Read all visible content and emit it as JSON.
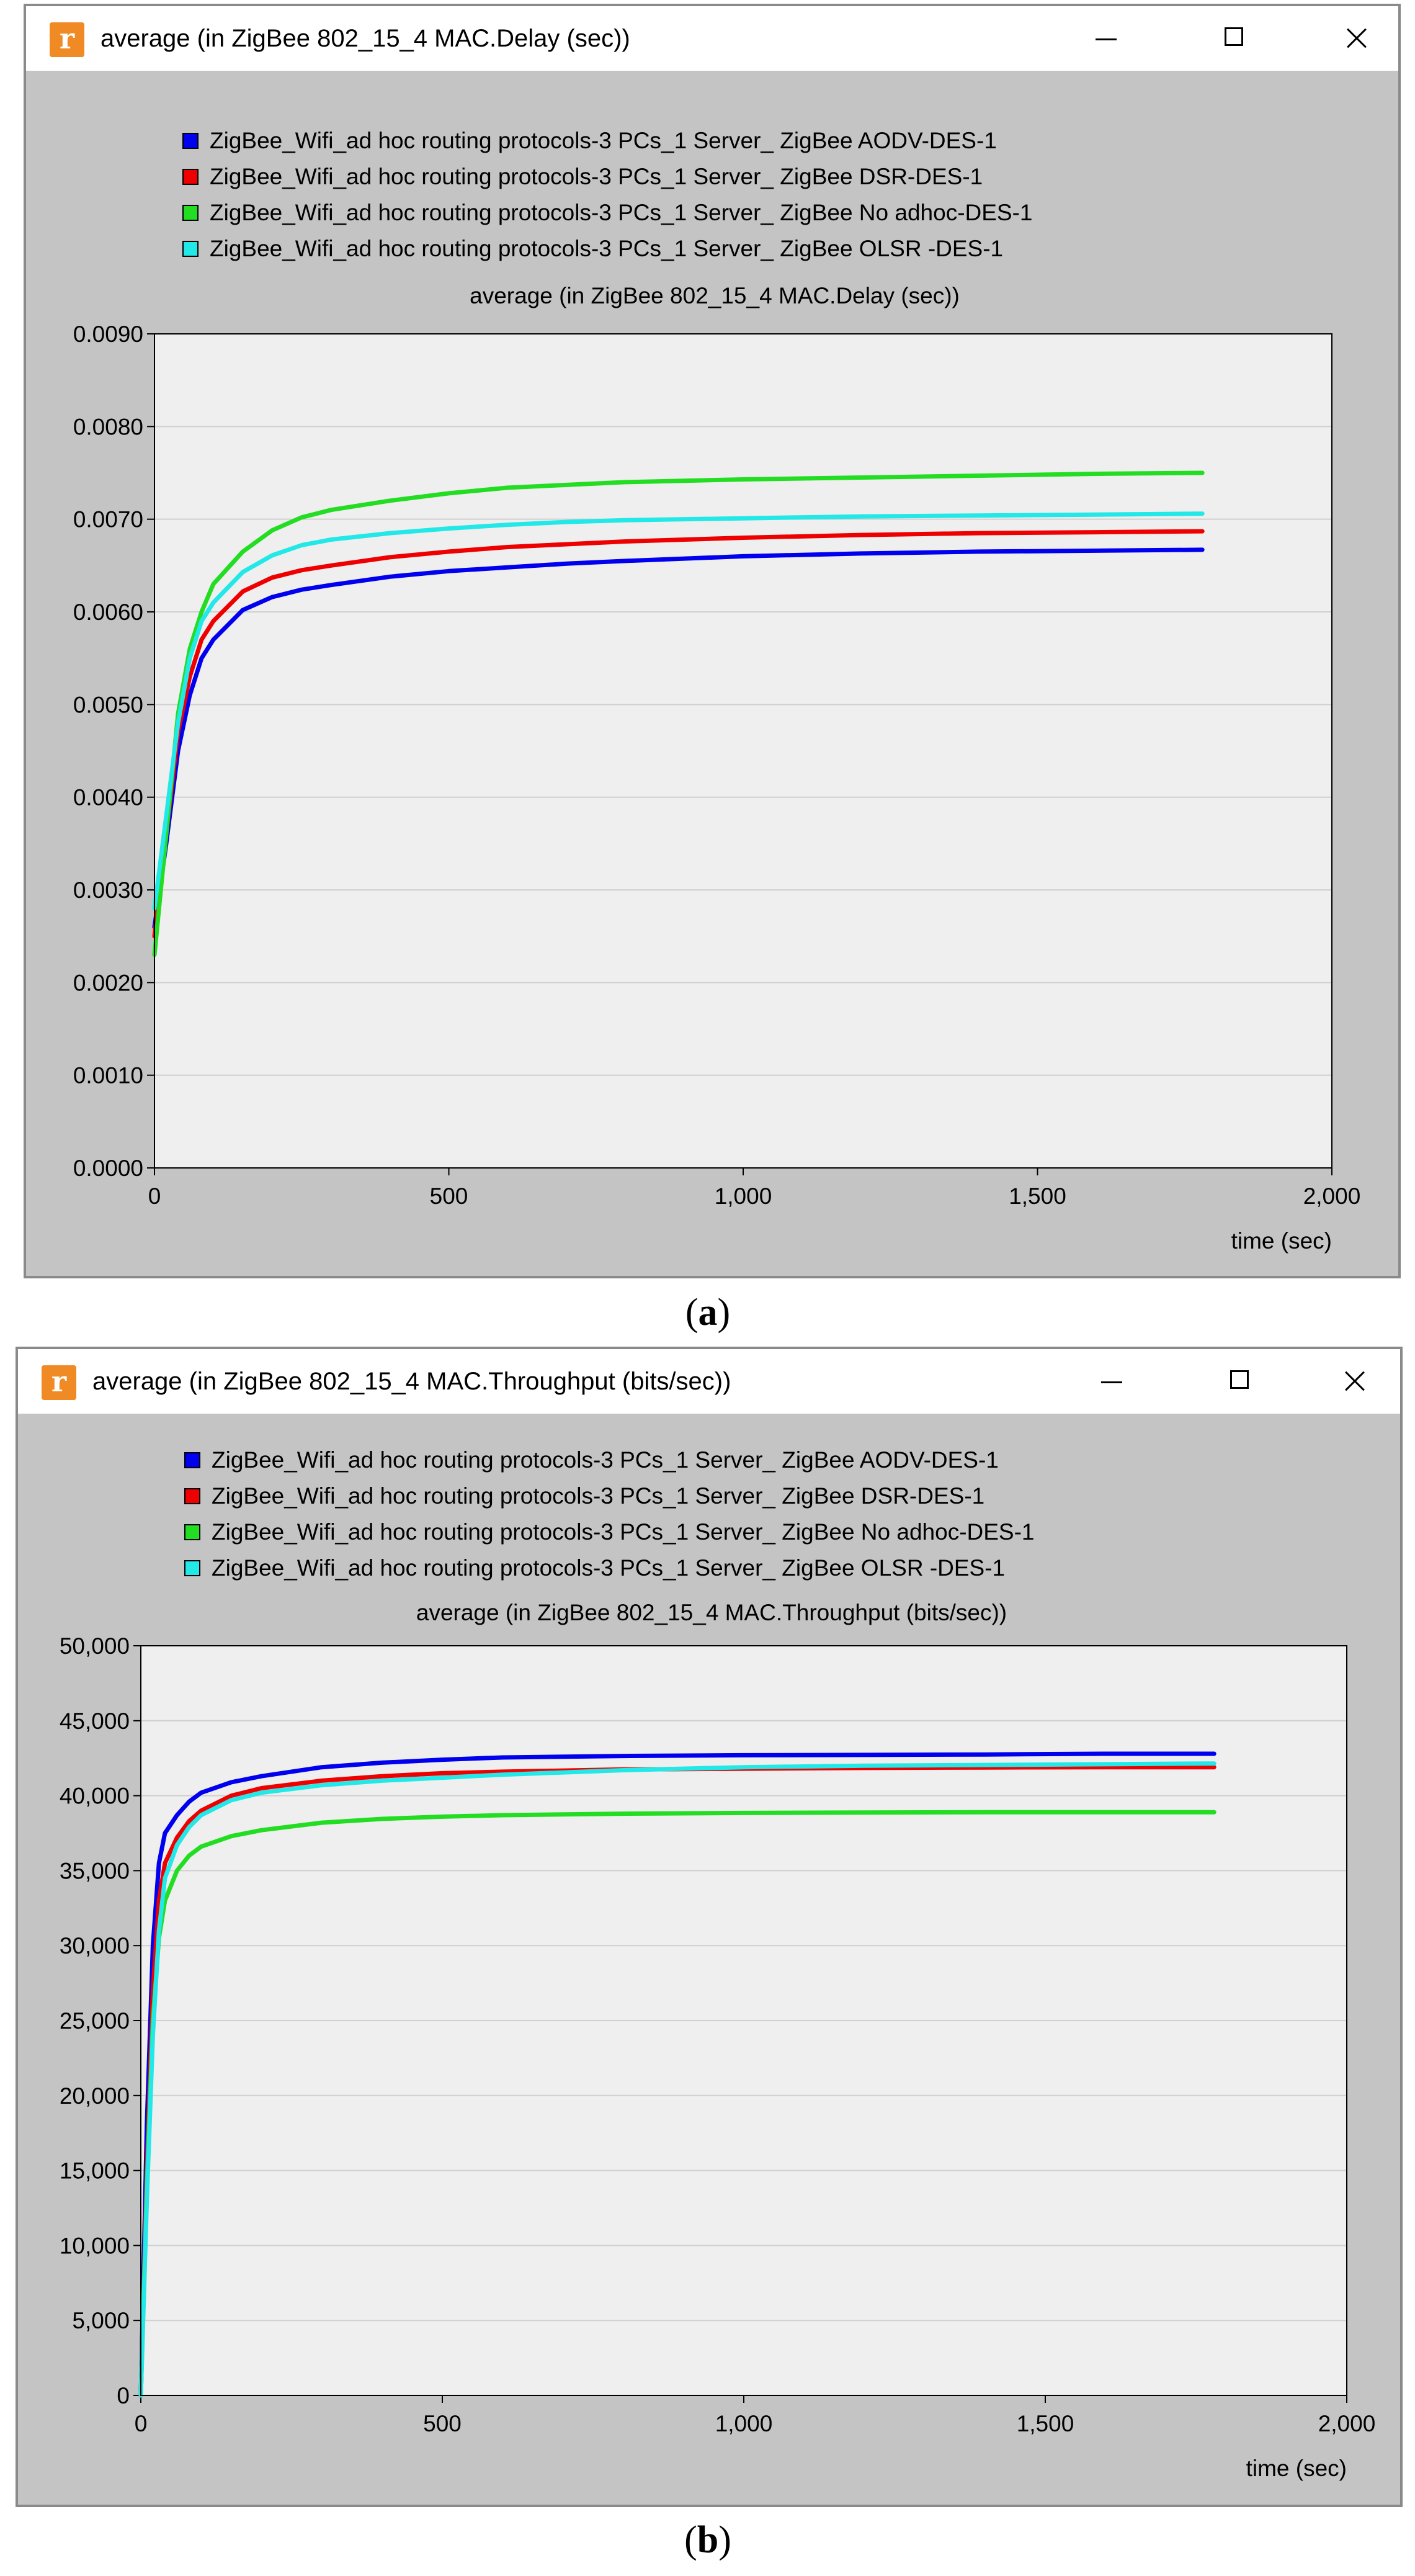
{
  "panels": [
    {
      "window_title": "average (in ZigBee 802_15_4 MAC.Delay (sec))",
      "caption_letter": "a",
      "chart_data": {
        "type": "line",
        "title": "average (in ZigBee 802_15_4 MAC.Delay (sec))",
        "xlabel": "time (sec)",
        "ylabel": "",
        "xlim": [
          0,
          2000
        ],
        "ylim": [
          0,
          0.009
        ],
        "x_ticks": [
          0,
          500,
          1000,
          1500,
          2000
        ],
        "x_tick_labels": [
          "0",
          "500",
          "1,000",
          "1,500",
          "2,000"
        ],
        "y_ticks": [
          0,
          0.001,
          0.002,
          0.003,
          0.004,
          0.005,
          0.006,
          0.007,
          0.008,
          0.009
        ],
        "y_tick_labels": [
          "0.0000",
          "0.0010",
          "0.0020",
          "0.0030",
          "0.0040",
          "0.0050",
          "0.0060",
          "0.0070",
          "0.0080",
          "0.0090"
        ],
        "grid": "horizontal",
        "legend_position": "top",
        "x": [
          0,
          20,
          40,
          60,
          80,
          100,
          150,
          200,
          250,
          300,
          400,
          500,
          600,
          700,
          800,
          1000,
          1200,
          1400,
          1600,
          1780
        ],
        "series": [
          {
            "name": "ZigBee_Wifi_ad hoc routing protocols-3 PCs_1 Server_ ZigBee  AODV-DES-1",
            "color": "#0000ee",
            "values": [
              0.0026,
              0.0035,
              0.0045,
              0.0051,
              0.0055,
              0.0057,
              0.00602,
              0.00616,
              0.00624,
              0.00629,
              0.00638,
              0.00644,
              0.00648,
              0.00652,
              0.00655,
              0.0066,
              0.00663,
              0.00665,
              0.00666,
              0.00667
            ]
          },
          {
            "name": "ZigBee_Wifi_ad hoc routing protocols-3 PCs_1 Server_ ZigBee DSR-DES-1",
            "color": "#ee0000",
            "values": [
              0.0025,
              0.0036,
              0.0047,
              0.0053,
              0.0057,
              0.0059,
              0.00622,
              0.00637,
              0.00645,
              0.0065,
              0.00659,
              0.00665,
              0.0067,
              0.00673,
              0.00676,
              0.0068,
              0.00683,
              0.00685,
              0.00686,
              0.00687
            ]
          },
          {
            "name": "ZigBee_Wifi_ad hoc routing protocols-3 PCs_1 Server_ ZigBee No adhoc-DES-1",
            "color": "#22dd22",
            "values": [
              0.0023,
              0.0036,
              0.0049,
              0.0056,
              0.006,
              0.0063,
              0.00665,
              0.00688,
              0.00702,
              0.0071,
              0.0072,
              0.00728,
              0.00734,
              0.00737,
              0.0074,
              0.00743,
              0.00745,
              0.00747,
              0.00749,
              0.0075
            ]
          },
          {
            "name": "ZigBee_Wifi_ad hoc routing protocols-3 PCs_1 Server_ ZigBee OLSR -DES-1",
            "color": "#22e8e8",
            "values": [
              0.0028,
              0.0038,
              0.0048,
              0.0055,
              0.0059,
              0.0061,
              0.00643,
              0.00661,
              0.00672,
              0.00678,
              0.00685,
              0.0069,
              0.00694,
              0.00697,
              0.00699,
              0.00701,
              0.00703,
              0.00704,
              0.00705,
              0.00706
            ]
          }
        ]
      }
    },
    {
      "window_title": "average (in ZigBee 802_15_4 MAC.Throughput (bits/sec))",
      "caption_letter": "b",
      "chart_data": {
        "type": "line",
        "title": "average (in ZigBee 802_15_4 MAC.Throughput (bits/sec))",
        "xlabel": "time (sec)",
        "ylabel": "",
        "xlim": [
          0,
          2000
        ],
        "ylim": [
          0,
          50000
        ],
        "x_ticks": [
          0,
          500,
          1000,
          1500,
          2000
        ],
        "x_tick_labels": [
          "0",
          "500",
          "1,000",
          "1,500",
          "2,000"
        ],
        "y_ticks": [
          0,
          5000,
          10000,
          15000,
          20000,
          25000,
          30000,
          35000,
          40000,
          45000,
          50000
        ],
        "y_tick_labels": [
          "0",
          "5,000",
          "10,000",
          "15,000",
          "20,000",
          "25,000",
          "30,000",
          "35,000",
          "40,000",
          "45,000",
          "50,000"
        ],
        "grid": "horizontal",
        "legend_position": "top",
        "x": [
          0,
          10,
          20,
          30,
          40,
          60,
          80,
          100,
          150,
          200,
          300,
          400,
          500,
          600,
          800,
          1000,
          1200,
          1400,
          1600,
          1780
        ],
        "series": [
          {
            "name": "ZigBee_Wifi_ad hoc routing protocols-3 PCs_1 Server_ ZigBee  AODV-DES-1",
            "color": "#0000ee",
            "values": [
              0,
              18000,
              30000,
              35500,
              37500,
              38700,
              39600,
              40200,
              40900,
              41300,
              41900,
              42200,
              42400,
              42550,
              42650,
              42700,
              42720,
              42750,
              42800,
              42800
            ]
          },
          {
            "name": "ZigBee_Wifi_ad hoc routing protocols-3 PCs_1 Server_ ZigBee DSR-DES-1",
            "color": "#ee0000",
            "values": [
              0,
              15000,
              27000,
              33000,
              35500,
              37200,
              38300,
              39000,
              40000,
              40500,
              41000,
              41300,
              41500,
              41600,
              41750,
              41800,
              41850,
              41880,
              41900,
              41900
            ]
          },
          {
            "name": "ZigBee_Wifi_ad hoc routing protocols-3 PCs_1 Server_ ZigBee No adhoc-DES-1",
            "color": "#22dd22",
            "values": [
              0,
              14000,
              25000,
              30500,
              33000,
              35000,
              36000,
              36600,
              37300,
              37700,
              38200,
              38450,
              38600,
              38700,
              38800,
              38850,
              38880,
              38900,
              38900,
              38900
            ]
          },
          {
            "name": "ZigBee_Wifi_ad hoc routing protocols-3 PCs_1 Server_ ZigBee OLSR -DES-1",
            "color": "#22e8e8",
            "values": [
              0,
              13000,
              24000,
              31000,
              34500,
              36700,
              37900,
              38700,
              39700,
              40200,
              40700,
              41000,
              41200,
              41400,
              41700,
              41900,
              42000,
              42050,
              42100,
              42150
            ]
          }
        ]
      }
    }
  ]
}
